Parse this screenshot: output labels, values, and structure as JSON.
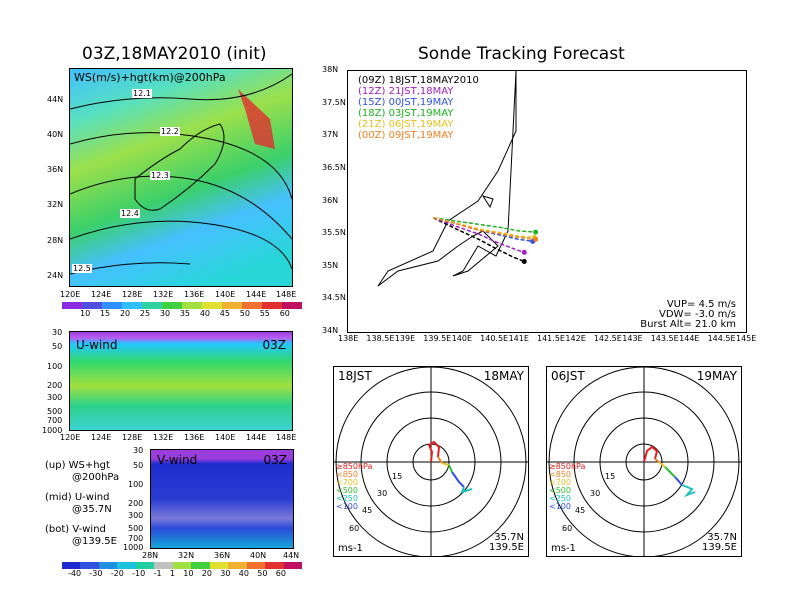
{
  "left_title": "03Z,18MAY2010 (init)",
  "right_title": "Sonde Tracking Forecast",
  "map_panel": {
    "label": "WS(m/s)+hgt(km)@200hPa",
    "lat_ticks": [
      "44N",
      "40N",
      "36N",
      "32N",
      "28N",
      "24N"
    ],
    "lon_ticks": [
      "120E",
      "124E",
      "128E",
      "132E",
      "136E",
      "140E",
      "144E",
      "148E"
    ],
    "contour_labels": [
      "12.1",
      "12.2",
      "12.3",
      "12.4",
      "12.5"
    ],
    "colorbar_labels": [
      "10",
      "15",
      "20",
      "25",
      "30",
      "35",
      "40",
      "45",
      "50",
      "55",
      "60"
    ]
  },
  "uwind_panel": {
    "label": "U-wind",
    "time": "03Z",
    "p_ticks": [
      "30",
      "50",
      "100",
      "200",
      "300",
      "500",
      "700",
      "1000"
    ],
    "lon_ticks": [
      "120E",
      "124E",
      "128E",
      "132E",
      "136E",
      "140E",
      "144E",
      "148E"
    ]
  },
  "vwind_panel": {
    "label": "V-wind",
    "time": "03Z",
    "p_ticks": [
      "30",
      "50",
      "100",
      "200",
      "300",
      "500",
      "700",
      "1000"
    ],
    "lat_ticks": [
      "28N",
      "32N",
      "36N",
      "40N",
      "44N"
    ]
  },
  "legend_notes": [
    {
      "a": "(up) WS+hgt",
      "b": "@200hPa"
    },
    {
      "a": "(mid) U-wind",
      "b": "@35.7N"
    },
    {
      "a": "(bot) V-wind",
      "b": "@139.5E"
    }
  ],
  "bottom_colorbar_labels": [
    "-40",
    "-30",
    "-20",
    "-10",
    "-1",
    "1",
    "10",
    "20",
    "30",
    "40",
    "50",
    "60"
  ],
  "track_panel": {
    "lat_ticks": [
      "38N",
      "37.5N",
      "37N",
      "36.5N",
      "36N",
      "35.5N",
      "35N",
      "34.5N",
      "34N"
    ],
    "lon_ticks": [
      "138E",
      "138.5E",
      "139E",
      "139.5E",
      "140E",
      "140.5E",
      "141E",
      "141.5E",
      "142E",
      "142.5E",
      "143E",
      "143.5E",
      "144E",
      "144.5E",
      "145E"
    ],
    "legend": [
      {
        "z": "(09Z)",
        "t": "18JST,18MAY2010",
        "color": "#000000"
      },
      {
        "z": "(12Z)",
        "t": "21JST,18MAY",
        "color": "#a020c0"
      },
      {
        "z": "(15Z)",
        "t": "00JST,19MAY",
        "color": "#3050e0"
      },
      {
        "z": "(18Z)",
        "t": "03JST,19MAY",
        "color": "#20b020"
      },
      {
        "z": "(21Z)",
        "t": "06JST,19MAY",
        "color": "#e8c020"
      },
      {
        "z": "(00Z)",
        "t": "09JST,19MAY",
        "color": "#f08020"
      }
    ],
    "info": [
      "VUP= 4.5 m/s",
      "VDW= -3.0 m/s",
      "Burst Alt= 21.0 km"
    ]
  },
  "hodo_left": {
    "time": "18JST",
    "date": "18MAY",
    "coord1": "35.7N",
    "coord2": "139.5E",
    "units": "ms-1",
    "rings": [
      "15",
      "30",
      "45",
      "60"
    ]
  },
  "hodo_right": {
    "time": "06JST",
    "date": "19MAY",
    "coord1": "35.7N",
    "coord2": "139.5E",
    "units": "ms-1",
    "rings": [
      "15",
      "30",
      "45",
      "60"
    ]
  },
  "hodo_levels": [
    {
      "t": "≥850hPa",
      "color": "#e02020"
    },
    {
      "t": "<850",
      "color": "#f08020"
    },
    {
      "t": "<700",
      "color": "#e8c020"
    },
    {
      "t": "<500",
      "color": "#30c030"
    },
    {
      "t": "<250",
      "color": "#20c0c0"
    },
    {
      "t": "<100",
      "color": "#3050e0"
    }
  ],
  "chart_data": {
    "type": "line",
    "title": "Sonde Tracking Forecast",
    "series": [
      {
        "name": "(09Z) 18JST,18MAY2010",
        "x": [
          139.5,
          139.9,
          140.3,
          140.6,
          140.9,
          141.1
        ],
        "y": [
          35.75,
          35.58,
          35.42,
          35.28,
          35.15,
          35.08
        ]
      },
      {
        "name": "(12Z) 21JST,18MAY",
        "x": [
          139.5,
          139.9,
          140.3,
          140.6,
          140.9,
          141.1
        ],
        "y": [
          35.75,
          35.62,
          35.5,
          35.38,
          35.28,
          35.22
        ]
      },
      {
        "name": "(15Z) 00JST,19MAY",
        "x": [
          139.5,
          139.9,
          140.3,
          140.7,
          141.0,
          141.25
        ],
        "y": [
          35.75,
          35.66,
          35.56,
          35.48,
          35.42,
          35.39
        ]
      },
      {
        "name": "(18Z) 03JST,19MAY",
        "x": [
          139.5,
          139.9,
          140.3,
          140.7,
          141.0,
          141.3
        ],
        "y": [
          35.75,
          35.7,
          35.65,
          35.6,
          35.55,
          35.53
        ]
      },
      {
        "name": "(21Z) 06JST,19MAY",
        "x": [
          139.5,
          139.9,
          140.3,
          140.7,
          141.0,
          141.28
        ],
        "y": [
          35.75,
          35.67,
          35.58,
          35.52,
          35.47,
          35.45
        ]
      },
      {
        "name": "(00Z) 09JST,19MAY",
        "x": [
          139.5,
          139.9,
          140.3,
          140.7,
          141.0,
          141.3
        ],
        "y": [
          35.75,
          35.66,
          35.56,
          35.5,
          35.45,
          35.42
        ]
      }
    ],
    "xlim": [
      138,
      145
    ],
    "ylim": [
      34,
      38
    ]
  }
}
